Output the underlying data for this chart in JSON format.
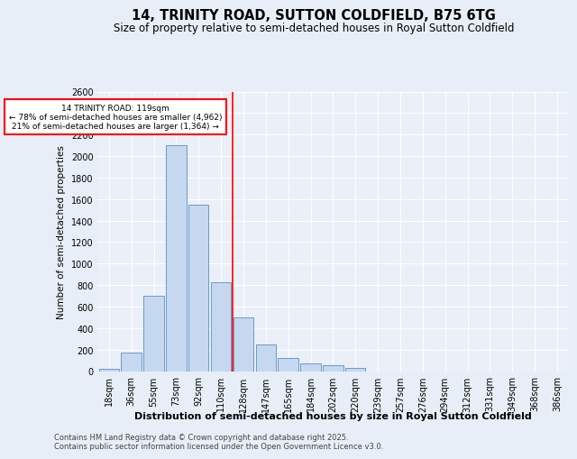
{
  "title": "14, TRINITY ROAD, SUTTON COLDFIELD, B75 6TG",
  "subtitle": "Size of property relative to semi-detached houses in Royal Sutton Coldfield",
  "xlabel": "Distribution of semi-detached houses by size in Royal Sutton Coldfield",
  "ylabel": "Number of semi-detached properties",
  "categories": [
    "18sqm",
    "36sqm",
    "55sqm",
    "73sqm",
    "92sqm",
    "110sqm",
    "128sqm",
    "147sqm",
    "165sqm",
    "184sqm",
    "202sqm",
    "220sqm",
    "239sqm",
    "257sqm",
    "276sqm",
    "294sqm",
    "312sqm",
    "331sqm",
    "349sqm",
    "368sqm",
    "386sqm"
  ],
  "values": [
    20,
    175,
    700,
    2100,
    1550,
    825,
    500,
    250,
    120,
    75,
    55,
    30,
    0,
    0,
    0,
    0,
    0,
    0,
    0,
    0,
    0
  ],
  "bar_color": "#c5d8f0",
  "bar_edge_color": "#5a8fc0",
  "vline_pos": 5.5,
  "vline_color": "red",
  "annotation_title": "14 TRINITY ROAD: 119sqm",
  "annotation_line1": "← 78% of semi-detached houses are smaller (4,962)",
  "annotation_line2": "21% of semi-detached houses are larger (1,364) →",
  "annotation_box_color": "red",
  "ylim": [
    0,
    2600
  ],
  "yticks": [
    0,
    200,
    400,
    600,
    800,
    1000,
    1200,
    1400,
    1600,
    1800,
    2000,
    2200,
    2400,
    2600
  ],
  "bg_color": "#e8eef7",
  "plot_bg_color": "#eaeff8",
  "footer": "Contains HM Land Registry data © Crown copyright and database right 2025.\nContains public sector information licensed under the Open Government Licence v3.0.",
  "title_fontsize": 10.5,
  "subtitle_fontsize": 8.5,
  "xlabel_fontsize": 8,
  "ylabel_fontsize": 7.5,
  "tick_fontsize": 7,
  "footer_fontsize": 6
}
